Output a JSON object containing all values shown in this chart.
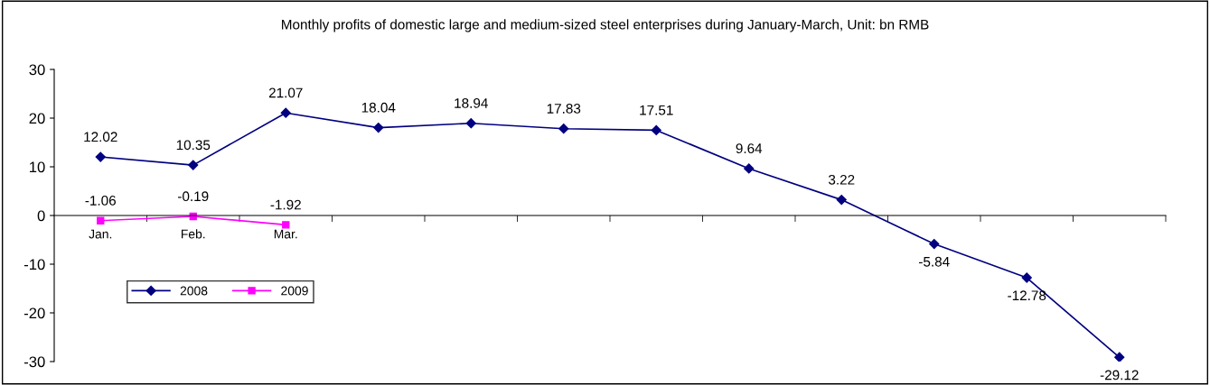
{
  "chart_data": {
    "type": "line",
    "title": "Monthly profits of domestic large and medium-sized steel enterprises during January-March, Unit: bn RMB",
    "categories": [
      "Jan.",
      "Feb.",
      "Mar.",
      null,
      null,
      null,
      null,
      null,
      null,
      null,
      null,
      null
    ],
    "series": [
      {
        "name": "2008",
        "color": "#000080",
        "marker": "diamond",
        "values": [
          12.02,
          10.35,
          21.07,
          18.04,
          18.94,
          17.83,
          17.51,
          9.64,
          3.22,
          -5.84,
          -12.78,
          -29.12
        ]
      },
      {
        "name": "2009",
        "color": "#ff00ff",
        "marker": "square",
        "values": [
          -1.06,
          -0.19,
          -1.92,
          null,
          null,
          null,
          null,
          null,
          null,
          null,
          null,
          null
        ]
      }
    ],
    "ylim": [
      -30,
      30
    ],
    "yticks": [
      -30,
      -20,
      -10,
      0,
      10,
      20,
      30
    ],
    "data_labels": true,
    "legend": "bottom left",
    "grid": false,
    "line_style": "solid"
  }
}
